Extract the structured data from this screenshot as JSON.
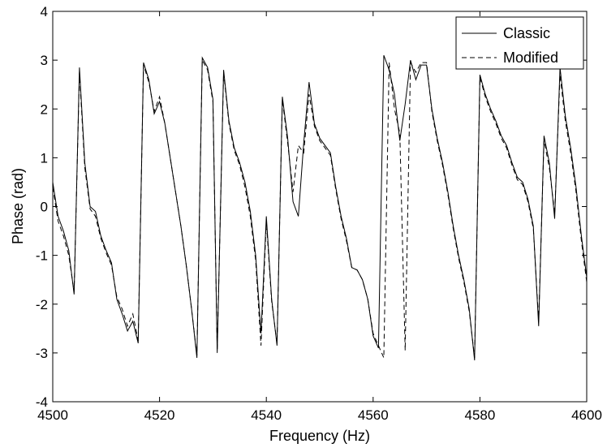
{
  "chart_data": {
    "type": "line",
    "title": "",
    "xlabel": "Frequency (Hz)",
    "ylabel": "Phase (rad)",
    "xlim": [
      4500,
      4600
    ],
    "ylim": [
      -4,
      4
    ],
    "x_ticks": [
      4500,
      4520,
      4540,
      4560,
      4580,
      4600
    ],
    "y_ticks": [
      -4,
      -3,
      -2,
      -1,
      0,
      1,
      2,
      3,
      4
    ],
    "grid": false,
    "legend": "top-right",
    "series": [
      {
        "name": "Classic",
        "style": "solid",
        "color": "#000000",
        "points": [
          [
            4500,
            0.5
          ],
          [
            4501,
            -0.2
          ],
          [
            4502,
            -0.5
          ],
          [
            4503,
            -0.9
          ],
          [
            4504,
            -1.8
          ],
          [
            4505,
            2.85
          ],
          [
            4506,
            0.9
          ],
          [
            4507,
            0.0
          ],
          [
            4508,
            -0.1
          ],
          [
            4509,
            -0.6
          ],
          [
            4510,
            -0.9
          ],
          [
            4511,
            -1.15
          ],
          [
            4512,
            -1.9
          ],
          [
            4513,
            -2.2
          ],
          [
            4514,
            -2.55
          ],
          [
            4515,
            -2.35
          ],
          [
            4516,
            -2.8
          ],
          [
            4517,
            2.95
          ],
          [
            4518,
            2.6
          ],
          [
            4519,
            1.9
          ],
          [
            4520,
            2.15
          ],
          [
            4521,
            1.7
          ],
          [
            4522,
            1.0
          ],
          [
            4523,
            0.3
          ],
          [
            4524,
            -0.4
          ],
          [
            4525,
            -1.2
          ],
          [
            4526,
            -2.1
          ],
          [
            4527,
            -3.1
          ],
          [
            4528,
            3.05
          ],
          [
            4529,
            2.85
          ],
          [
            4530,
            2.2
          ],
          [
            4530.8,
            -3.0
          ],
          [
            4532,
            2.8
          ],
          [
            4533,
            1.75
          ],
          [
            4534,
            1.2
          ],
          [
            4535,
            0.9
          ],
          [
            4536,
            0.5
          ],
          [
            4537,
            -0.1
          ],
          [
            4538,
            -1.0
          ],
          [
            4539,
            -2.6
          ],
          [
            4540,
            -0.2
          ],
          [
            4541,
            -1.9
          ],
          [
            4542,
            -2.85
          ],
          [
            4543,
            2.25
          ],
          [
            4544,
            1.4
          ],
          [
            4545,
            0.1
          ],
          [
            4546,
            -0.2
          ],
          [
            4547,
            1.3
          ],
          [
            4548,
            2.55
          ],
          [
            4549,
            1.7
          ],
          [
            4550,
            1.4
          ],
          [
            4551,
            1.25
          ],
          [
            4552,
            1.1
          ],
          [
            4553,
            0.4
          ],
          [
            4554,
            -0.2
          ],
          [
            4555,
            -0.65
          ],
          [
            4556,
            -1.25
          ],
          [
            4557,
            -1.3
          ],
          [
            4558,
            -1.5
          ],
          [
            4559,
            -1.9
          ],
          [
            4560,
            -2.65
          ],
          [
            4561,
            -2.9
          ],
          [
            4562,
            3.1
          ],
          [
            4563,
            2.8
          ],
          [
            4564,
            2.3
          ],
          [
            4565,
            1.35
          ],
          [
            4566,
            2.1
          ],
          [
            4567,
            3.0
          ],
          [
            4568,
            2.6
          ],
          [
            4569,
            2.9
          ],
          [
            4570,
            2.9
          ],
          [
            4571,
            2.0
          ],
          [
            4572,
            1.4
          ],
          [
            4573,
            0.9
          ],
          [
            4574,
            0.3
          ],
          [
            4575,
            -0.4
          ],
          [
            4576,
            -1.0
          ],
          [
            4577,
            -1.5
          ],
          [
            4578,
            -2.1
          ],
          [
            4579,
            -3.15
          ],
          [
            4580,
            2.7
          ],
          [
            4581,
            2.3
          ],
          [
            4582,
            2.0
          ],
          [
            4583,
            1.75
          ],
          [
            4584,
            1.45
          ],
          [
            4585,
            1.25
          ],
          [
            4586,
            0.9
          ],
          [
            4587,
            0.6
          ],
          [
            4588,
            0.5
          ],
          [
            4589,
            0.15
          ],
          [
            4590,
            -0.4
          ],
          [
            4591,
            -2.45
          ],
          [
            4592,
            1.45
          ],
          [
            4593,
            0.9
          ],
          [
            4594,
            -0.25
          ],
          [
            4595,
            2.85
          ],
          [
            4596,
            1.85
          ],
          [
            4597,
            1.2
          ],
          [
            4598,
            0.4
          ],
          [
            4599,
            -0.6
          ],
          [
            4600,
            -1.45
          ]
        ]
      },
      {
        "name": "Modified",
        "style": "dashed",
        "color": "#000000",
        "points": [
          [
            4500,
            0.4
          ],
          [
            4501,
            -0.3
          ],
          [
            4502,
            -0.6
          ],
          [
            4503,
            -1.0
          ],
          [
            4504,
            -1.75
          ],
          [
            4505,
            2.75
          ],
          [
            4506,
            0.8
          ],
          [
            4507,
            -0.05
          ],
          [
            4508,
            -0.2
          ],
          [
            4509,
            -0.65
          ],
          [
            4510,
            -0.95
          ],
          [
            4511,
            -1.2
          ],
          [
            4512,
            -1.85
          ],
          [
            4513,
            -2.1
          ],
          [
            4514,
            -2.45
          ],
          [
            4515,
            -2.2
          ],
          [
            4516,
            -2.75
          ],
          [
            4517,
            2.9
          ],
          [
            4518,
            2.55
          ],
          [
            4519,
            1.95
          ],
          [
            4520,
            2.25
          ],
          [
            4521,
            1.7
          ],
          [
            4522,
            1.0
          ],
          [
            4523,
            0.3
          ],
          [
            4524,
            -0.4
          ],
          [
            4525,
            -1.2
          ],
          [
            4526,
            -2.1
          ],
          [
            4527,
            -3.05
          ],
          [
            4528,
            3.0
          ],
          [
            4529,
            2.8
          ],
          [
            4530,
            2.15
          ],
          [
            4530.8,
            -2.95
          ],
          [
            4532,
            2.75
          ],
          [
            4533,
            1.7
          ],
          [
            4534,
            1.15
          ],
          [
            4535,
            0.85
          ],
          [
            4536,
            0.4
          ],
          [
            4537,
            -0.2
          ],
          [
            4538,
            -1.1
          ],
          [
            4539,
            -2.85
          ],
          [
            4540,
            -0.3
          ],
          [
            4541,
            -1.95
          ],
          [
            4542,
            -2.8
          ],
          [
            4543,
            2.2
          ],
          [
            4544,
            1.3
          ],
          [
            4545,
            0.3
          ],
          [
            4546,
            1.25
          ],
          [
            4547,
            1.1
          ],
          [
            4548,
            2.3
          ],
          [
            4549,
            1.65
          ],
          [
            4550,
            1.35
          ],
          [
            4551,
            1.2
          ],
          [
            4552,
            1.05
          ],
          [
            4553,
            0.35
          ],
          [
            4554,
            -0.25
          ],
          [
            4555,
            -0.7
          ],
          [
            4556,
            -1.25
          ],
          [
            4557,
            -1.3
          ],
          [
            4558,
            -1.5
          ],
          [
            4559,
            -1.9
          ],
          [
            4560,
            -2.6
          ],
          [
            4561,
            -2.85
          ],
          [
            4562,
            -3.1
          ],
          [
            4563,
            2.95
          ],
          [
            4564,
            2.0
          ],
          [
            4565,
            1.5
          ],
          [
            4566,
            -2.95
          ],
          [
            4567,
            2.95
          ],
          [
            4568,
            2.75
          ],
          [
            4569,
            2.95
          ],
          [
            4570,
            2.95
          ],
          [
            4571,
            1.95
          ],
          [
            4572,
            1.35
          ],
          [
            4573,
            0.85
          ],
          [
            4574,
            0.25
          ],
          [
            4575,
            -0.45
          ],
          [
            4576,
            -1.05
          ],
          [
            4577,
            -1.55
          ],
          [
            4578,
            -2.15
          ],
          [
            4579,
            -3.1
          ],
          [
            4580,
            2.65
          ],
          [
            4581,
            2.25
          ],
          [
            4582,
            1.95
          ],
          [
            4583,
            1.7
          ],
          [
            4584,
            1.4
          ],
          [
            4585,
            1.2
          ],
          [
            4586,
            0.85
          ],
          [
            4587,
            0.55
          ],
          [
            4588,
            0.45
          ],
          [
            4589,
            0.1
          ],
          [
            4590,
            -0.45
          ],
          [
            4591,
            -2.35
          ],
          [
            4592,
            1.35
          ],
          [
            4593,
            0.8
          ],
          [
            4594,
            -0.15
          ],
          [
            4595,
            2.7
          ],
          [
            4596,
            1.75
          ],
          [
            4597,
            1.1
          ],
          [
            4598,
            0.3
          ],
          [
            4599,
            -0.7
          ],
          [
            4600,
            -1.55
          ]
        ]
      }
    ]
  }
}
